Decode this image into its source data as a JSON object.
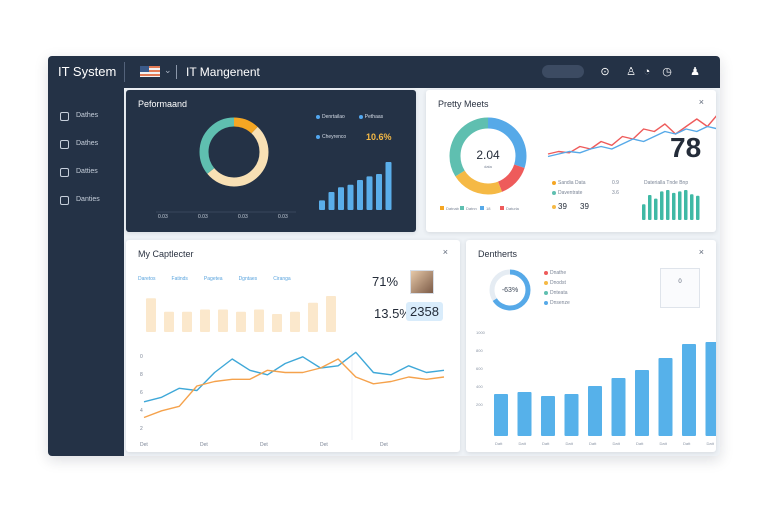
{
  "app": {
    "brand": "IT System",
    "title": "IT Mangenent",
    "flag_icon": "flag-icon",
    "toolbar_icons": [
      "bell-icon",
      "user-icon",
      "chat-icon",
      "clock-icon",
      "profile-icon"
    ]
  },
  "sidebar": {
    "items": [
      {
        "label": "Dathes",
        "icon": "home-icon"
      },
      {
        "label": "Dathes",
        "icon": "folder-icon"
      },
      {
        "label": "Datties",
        "icon": "box-icon"
      },
      {
        "label": "Danties",
        "icon": "settings-icon"
      }
    ]
  },
  "performance": {
    "title": "Peformaand",
    "donut": [
      {
        "value": 12,
        "color": "#f5a623"
      },
      {
        "value": 52,
        "color": "#f8e0b4"
      },
      {
        "value": 36,
        "color": "#5fbfb0"
      }
    ],
    "axis_labels": [
      "0.03",
      "0.03",
      "0.03",
      "0.03"
    ],
    "legend": [
      {
        "label": "Denrtailao",
        "color": "#52a7f0"
      },
      {
        "label": "Pethaas",
        "color": "#52a7f0"
      },
      {
        "label": "Cheyrenco",
        "color": "#52a7f0"
      }
    ],
    "kpi": "10.6%",
    "bars": [
      16,
      30,
      38,
      42,
      50,
      56,
      60,
      80
    ]
  },
  "pretty_meets": {
    "title": "Pretty Meets",
    "donut_value": "2.04",
    "donut_sub": "data",
    "donut": [
      {
        "value": 30,
        "color": "#56a9e8"
      },
      {
        "value": 14,
        "color": "#ee5b5b"
      },
      {
        "value": 22,
        "color": "#f5b945"
      },
      {
        "value": 34,
        "color": "#5fbfb0"
      }
    ],
    "donut_legend": [
      "Datnab",
      "Datnn",
      "18",
      "Daturia"
    ],
    "big_value": "78",
    "stats": [
      {
        "label": "Sandia Data",
        "value": "0.9"
      },
      {
        "label": "Daventrate",
        "value": "3.6"
      },
      {
        "label": "39",
        "value": "39"
      }
    ],
    "bars_caption": "Daterialla Tnde Bnp",
    "bars": [
      22,
      35,
      30,
      40,
      42,
      38,
      40,
      42,
      36,
      34
    ],
    "line1": [
      8,
      10,
      9,
      14,
      12,
      18,
      15,
      22,
      20,
      28,
      26,
      32,
      24,
      30,
      36,
      30,
      40
    ],
    "line2": [
      6,
      8,
      10,
      9,
      12,
      14,
      12,
      16,
      20,
      18,
      22,
      26,
      24,
      28,
      26,
      30,
      28
    ]
  },
  "my_capturer": {
    "title": "My Captlecter",
    "tabs": [
      "Daretos",
      "Fatinds",
      "Pagetea",
      "Dgntaes",
      "Ciranga"
    ],
    "kpi_top": "71%",
    "kpi_left": "13.5%",
    "kpi_right": "2358",
    "y_ticks": [
      "0",
      "8",
      "6",
      "4",
      "2"
    ],
    "x_ticks": [
      "Det",
      "Det",
      "Det",
      "Det",
      "Det"
    ],
    "bars": [
      30,
      18,
      18,
      20,
      20,
      18,
      20,
      16,
      18,
      26,
      32
    ],
    "line_blue": [
      34,
      38,
      46,
      44,
      60,
      72,
      62,
      58,
      68,
      74,
      64,
      66,
      78,
      60,
      58,
      66,
      60,
      62
    ],
    "line_orange": [
      20,
      26,
      30,
      48,
      52,
      54,
      54,
      62,
      60,
      60,
      64,
      72,
      56,
      50,
      52,
      56,
      54,
      56
    ]
  },
  "dentherts": {
    "title": "Dentherts",
    "donut_value": "-63%",
    "donut": [
      {
        "value": 66,
        "color": "#56a9e8"
      },
      {
        "value": 34,
        "color": "#e5ecf3"
      }
    ],
    "legend": [
      {
        "label": "Dnathe",
        "color": "#ee5b5b"
      },
      {
        "label": "Dnodst",
        "color": "#f5b945"
      },
      {
        "label": "Dnteata",
        "color": "#5fbfb0"
      },
      {
        "label": "Dnsenze",
        "color": "#56a9e8"
      }
    ],
    "mini_box_label": "0",
    "y_ticks": [
      "1000",
      "800",
      "600",
      "400",
      "200"
    ],
    "x_ticks": [
      "Datt",
      "Datt",
      "Datt",
      "Datt",
      "Datt",
      "Datt",
      "Datt",
      "Datt",
      "Datt",
      "Datt"
    ],
    "bars": [
      42,
      44,
      40,
      42,
      50,
      58,
      66,
      78,
      92,
      94
    ]
  }
}
